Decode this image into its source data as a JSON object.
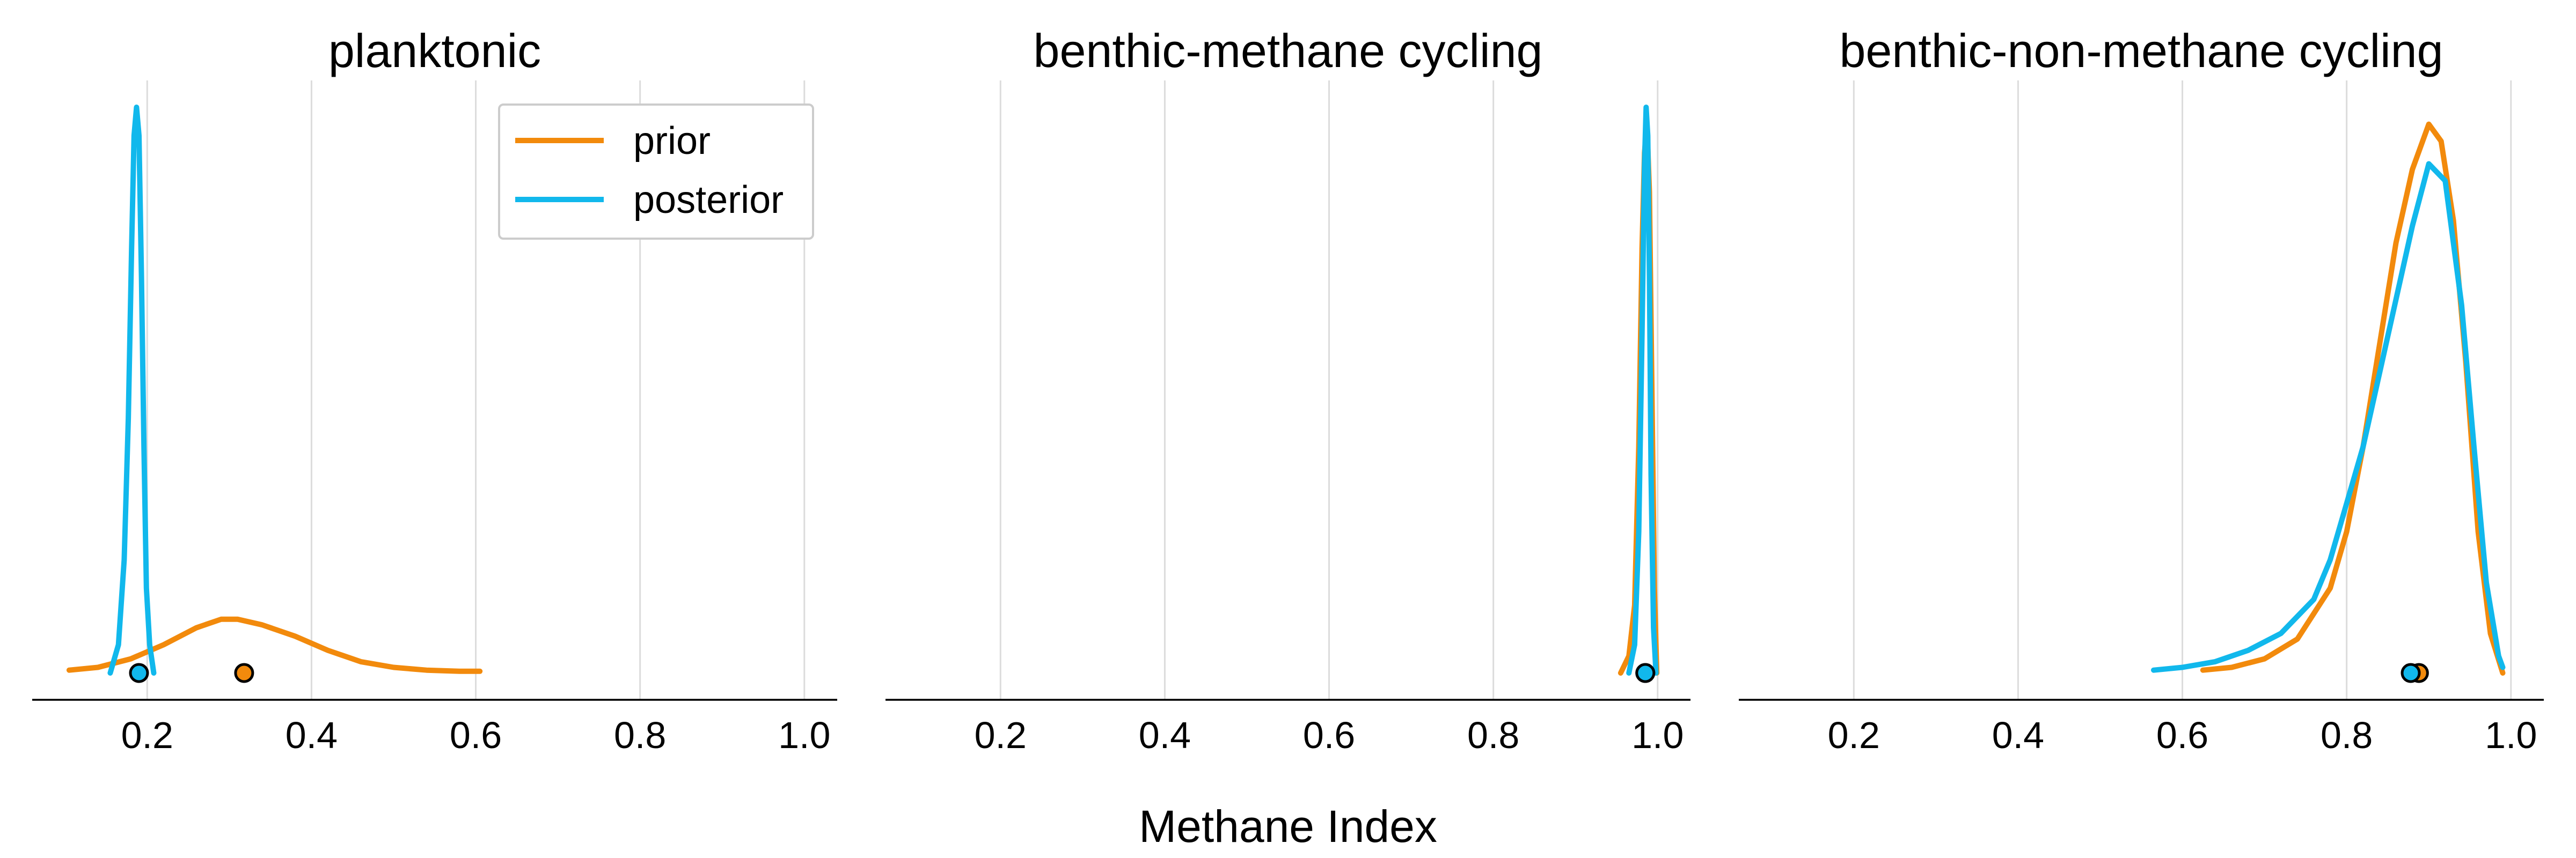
{
  "figure": {
    "xlabel": "Methane Index"
  },
  "colors": {
    "prior": "#f28a0c",
    "posterior": "#11b8ec"
  },
  "legend": {
    "placement": "top-right of first panel",
    "entries": [
      {
        "key": "prior",
        "label": "prior"
      },
      {
        "key": "posterior",
        "label": "posterior"
      }
    ]
  },
  "chart_data": [
    {
      "type": "line",
      "title": "planktonic",
      "xlabel": "",
      "ylabel": "",
      "xlim": [
        0.06,
        1.04
      ],
      "ylim": [
        0,
        1.0
      ],
      "grid": "vertical",
      "xticks": [
        "0.2",
        "0.4",
        "0.6",
        "0.8",
        "1.0"
      ],
      "xtick_values": [
        0.2,
        0.4,
        0.6,
        0.8,
        1.0
      ],
      "series": [
        {
          "key": "prior",
          "name": "prior",
          "x": [
            0.105,
            0.14,
            0.18,
            0.22,
            0.26,
            0.29,
            0.31,
            0.34,
            0.38,
            0.42,
            0.46,
            0.5,
            0.54,
            0.58,
            0.605
          ],
          "y": [
            0.005,
            0.01,
            0.025,
            0.05,
            0.08,
            0.095,
            0.095,
            0.085,
            0.065,
            0.04,
            0.02,
            0.01,
            0.005,
            0.003,
            0.003
          ]
        },
        {
          "key": "posterior",
          "name": "posterior",
          "x": [
            0.155,
            0.165,
            0.172,
            0.177,
            0.181,
            0.184,
            0.187,
            0.19,
            0.193,
            0.196,
            0.199,
            0.203,
            0.208
          ],
          "y": [
            0.0,
            0.05,
            0.2,
            0.45,
            0.75,
            0.95,
            1.0,
            0.95,
            0.7,
            0.4,
            0.15,
            0.05,
            0.0
          ]
        }
      ],
      "points": [
        {
          "key": "posterior",
          "x": 0.19
        },
        {
          "key": "prior",
          "x": 0.318
        }
      ]
    },
    {
      "type": "line",
      "title": "benthic-methane cycling",
      "xlabel": "",
      "ylabel": "",
      "xlim": [
        0.06,
        1.04
      ],
      "ylim": [
        0,
        1.0
      ],
      "grid": "vertical",
      "xticks": [
        "0.2",
        "0.4",
        "0.6",
        "0.8",
        "1.0"
      ],
      "xtick_values": [
        0.2,
        0.4,
        0.6,
        0.8,
        1.0
      ],
      "series": [
        {
          "key": "prior",
          "name": "prior",
          "x": [
            0.955,
            0.965,
            0.972,
            0.977,
            0.981,
            0.984,
            0.987,
            0.99,
            0.993,
            0.996,
            0.999
          ],
          "y": [
            0.0,
            0.03,
            0.12,
            0.4,
            0.75,
            0.92,
            0.97,
            0.85,
            0.5,
            0.15,
            0.0
          ]
        },
        {
          "key": "posterior",
          "name": "posterior",
          "x": [
            0.965,
            0.972,
            0.977,
            0.981,
            0.984,
            0.986,
            0.988,
            0.99,
            0.992,
            0.995,
            0.998
          ],
          "y": [
            0.0,
            0.05,
            0.25,
            0.6,
            0.9,
            1.0,
            0.95,
            0.7,
            0.35,
            0.08,
            0.0
          ]
        }
      ],
      "points": [
        {
          "key": "prior",
          "x": 0.985
        },
        {
          "key": "posterior",
          "x": 0.985
        }
      ]
    },
    {
      "type": "line",
      "title": "benthic-non-methane cycling",
      "xlabel": "",
      "ylabel": "",
      "xlim": [
        0.06,
        1.04
      ],
      "ylim": [
        0,
        1.0
      ],
      "grid": "vertical",
      "xticks": [
        "0.2",
        "0.4",
        "0.6",
        "0.8",
        "1.0"
      ],
      "xtick_values": [
        0.2,
        0.4,
        0.6,
        0.8,
        1.0
      ],
      "series": [
        {
          "key": "prior",
          "name": "prior",
          "x": [
            0.625,
            0.66,
            0.7,
            0.74,
            0.78,
            0.8,
            0.82,
            0.84,
            0.86,
            0.88,
            0.9,
            0.915,
            0.93,
            0.945,
            0.96,
            0.975,
            0.99
          ],
          "y": [
            0.005,
            0.01,
            0.025,
            0.06,
            0.15,
            0.25,
            0.4,
            0.58,
            0.76,
            0.89,
            0.97,
            0.94,
            0.8,
            0.55,
            0.25,
            0.07,
            0.0
          ]
        },
        {
          "key": "posterior",
          "name": "posterior",
          "x": [
            0.565,
            0.6,
            0.64,
            0.68,
            0.72,
            0.76,
            0.78,
            0.8,
            0.82,
            0.84,
            0.86,
            0.88,
            0.9,
            0.92,
            0.94,
            0.955,
            0.97,
            0.985,
            0.99
          ],
          "y": [
            0.005,
            0.01,
            0.02,
            0.04,
            0.07,
            0.13,
            0.2,
            0.3,
            0.4,
            0.53,
            0.66,
            0.79,
            0.9,
            0.87,
            0.65,
            0.4,
            0.16,
            0.03,
            0.01
          ]
        }
      ],
      "points": [
        {
          "key": "prior",
          "x": 0.888
        },
        {
          "key": "posterior",
          "x": 0.878
        }
      ]
    }
  ]
}
